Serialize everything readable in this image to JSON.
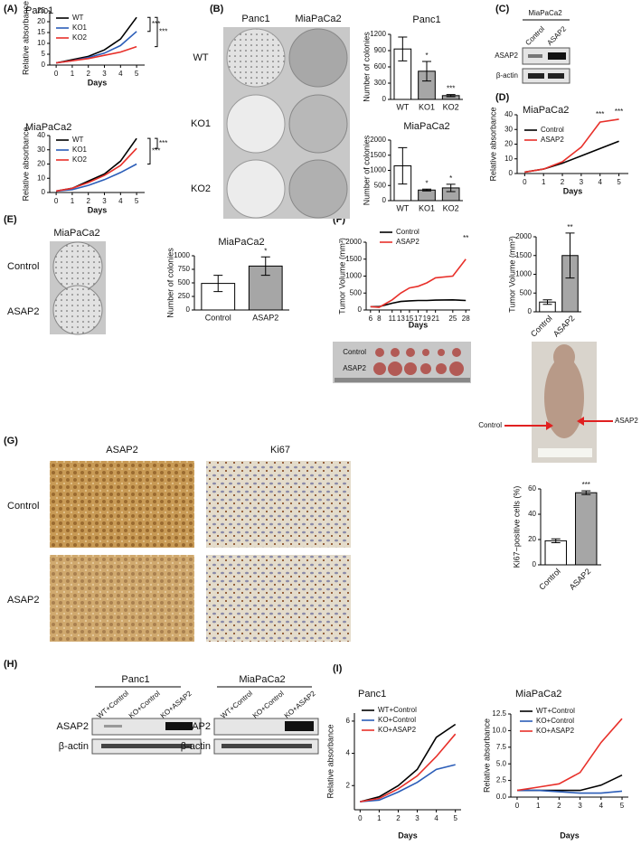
{
  "chart_data": [
    {
      "type": "line",
      "title": "Panc1",
      "xlabel": "Days",
      "ylabel": "Relative absorbance",
      "x": [
        0,
        1,
        2,
        3,
        4,
        5
      ],
      "xlim": [
        -0.4,
        5.5
      ],
      "xticks": [
        0,
        1,
        2,
        3,
        4,
        5
      ],
      "ylim": [
        0,
        25
      ],
      "yticks": [
        0,
        5,
        10,
        15,
        20,
        25
      ],
      "series": [
        {
          "name": "WT",
          "color": "#000000",
          "values": [
            1,
            2.5,
            4,
            7,
            12,
            22
          ]
        },
        {
          "name": "KO1",
          "color": "#2b5db8",
          "values": [
            1,
            2,
            3.5,
            5.5,
            9,
            15.5
          ]
        },
        {
          "name": "KO2",
          "color": "#e8302a",
          "values": [
            1,
            2,
            3,
            4.5,
            6,
            8.5
          ]
        }
      ],
      "annotations": [
        "***",
        "***"
      ]
    },
    {
      "type": "line",
      "title": "MiaPaCa2",
      "xlabel": "Days",
      "ylabel": "Relative absorbance",
      "x": [
        0,
        1,
        2,
        3,
        4,
        5
      ],
      "xlim": [
        -0.4,
        5.5
      ],
      "xticks": [
        0,
        1,
        2,
        3,
        4,
        5
      ],
      "ylim": [
        0,
        40
      ],
      "yticks": [
        0,
        10,
        20,
        30,
        40
      ],
      "series": [
        {
          "name": "WT",
          "color": "#000000",
          "values": [
            1,
            3,
            8,
            13,
            22,
            38
          ]
        },
        {
          "name": "KO1",
          "color": "#2b5db8",
          "values": [
            1,
            2,
            5,
            9,
            14,
            20
          ]
        },
        {
          "name": "KO2",
          "color": "#e8302a",
          "values": [
            1,
            3,
            7,
            12,
            19,
            31
          ]
        }
      ],
      "annotations": [
        "***",
        "***"
      ]
    },
    {
      "type": "bar",
      "title": "Panc1",
      "ylabel": "Number of colonies",
      "categories": [
        "WT",
        "KO1",
        "KO2"
      ],
      "values": [
        930,
        520,
        70
      ],
      "errors": [
        220,
        180,
        20
      ],
      "colors": [
        "#ffffff",
        "#a6a6a6",
        "#a6a6a6"
      ],
      "ylim": [
        0,
        1200
      ],
      "yticks": [
        0,
        300,
        600,
        900,
        1200
      ],
      "annotations": [
        "*",
        "***"
      ]
    },
    {
      "type": "bar",
      "title": "MiaPaCa2",
      "ylabel": "Number of colonies",
      "categories": [
        "WT",
        "KO1",
        "KO2"
      ],
      "values": [
        1150,
        350,
        420
      ],
      "errors": [
        600,
        30,
        120
      ],
      "colors": [
        "#ffffff",
        "#a6a6a6",
        "#a6a6a6"
      ],
      "ylim": [
        0,
        2000
      ],
      "yticks": [
        0,
        500,
        1000,
        1500,
        2000
      ],
      "annotations": [
        "*",
        "*"
      ]
    },
    {
      "type": "line",
      "title": "MiaPaCa2",
      "xlabel": "Days",
      "ylabel": "Relative absorbance",
      "x": [
        0,
        1,
        2,
        3,
        4,
        5
      ],
      "xlim": [
        -0.4,
        5.5
      ],
      "xticks": [
        0,
        1,
        2,
        3,
        4,
        5
      ],
      "ylim": [
        0,
        40
      ],
      "yticks": [
        0,
        10,
        20,
        30,
        40
      ],
      "series": [
        {
          "name": "Control",
          "color": "#000000",
          "values": [
            1,
            3,
            7,
            12,
            17,
            22
          ]
        },
        {
          "name": "ASAP2",
          "color": "#e8302a",
          "values": [
            1,
            3,
            8,
            18,
            35,
            37
          ]
        }
      ],
      "annotations": [
        "***",
        "***"
      ]
    },
    {
      "type": "bar",
      "title": "MiaPaCa2",
      "ylabel": "Number of colonies",
      "categories": [
        "Control",
        "ASAP2"
      ],
      "values": [
        490,
        810
      ],
      "errors": [
        150,
        170
      ],
      "colors": [
        "#ffffff",
        "#a6a6a6"
      ],
      "ylim": [
        0,
        1000
      ],
      "yticks": [
        0,
        250,
        500,
        750,
        1000
      ],
      "annotations": [
        "*"
      ]
    },
    {
      "type": "line",
      "xlabel": "Days",
      "ylabel": "Tumor Volume (mm³)",
      "x": [
        6,
        8,
        11,
        13,
        15,
        17,
        19,
        21,
        25,
        28
      ],
      "xlim": [
        5,
        29
      ],
      "xticks": [
        6,
        8,
        11,
        13,
        15,
        17,
        19,
        21,
        25,
        28
      ],
      "ylim": [
        0,
        2000
      ],
      "yticks": [
        0,
        500,
        1000,
        1500,
        2000
      ],
      "series": [
        {
          "name": "Control",
          "color": "#000000",
          "values": [
            100,
            100,
            200,
            250,
            270,
            280,
            280,
            290,
            300,
            280
          ]
        },
        {
          "name": "ASAP2",
          "color": "#e8302a",
          "values": [
            100,
            80,
            300,
            500,
            650,
            700,
            800,
            950,
            1000,
            1500
          ]
        }
      ],
      "annotations": [
        "**"
      ]
    },
    {
      "type": "bar",
      "ylabel": "Tumor Volume (mm³)",
      "categories": [
        "Control",
        "ASAP2"
      ],
      "values": [
        260,
        1500
      ],
      "errors": [
        60,
        600
      ],
      "colors": [
        "#ffffff",
        "#a6a6a6"
      ],
      "ylim": [
        0,
        2000
      ],
      "yticks": [
        0,
        500,
        1000,
        1500,
        2000
      ],
      "annotations": [
        "**"
      ]
    },
    {
      "type": "bar",
      "ylabel": "Ki67−positive cells (%)",
      "categories": [
        "Control",
        "ASAP2"
      ],
      "values": [
        19,
        57
      ],
      "errors": [
        1.5,
        1.5
      ],
      "colors": [
        "#ffffff",
        "#a6a6a6"
      ],
      "ylim": [
        0,
        60
      ],
      "yticks": [
        0,
        20,
        40,
        60
      ],
      "annotations": [
        "***"
      ]
    },
    {
      "type": "line",
      "title": "Panc1",
      "xlabel": "Days",
      "ylabel": "Relative absorbance",
      "x": [
        0,
        1,
        2,
        3,
        4,
        5
      ],
      "xlim": [
        -0.3,
        5.3
      ],
      "xticks": [
        0,
        1,
        2,
        3,
        4,
        5
      ],
      "ylim": [
        0.5,
        6.5
      ],
      "yticks": [
        2,
        4,
        6
      ],
      "series": [
        {
          "name": "WT+Control",
          "color": "#000000",
          "values": [
            1,
            1.3,
            2,
            3,
            5,
            5.8
          ]
        },
        {
          "name": "KO+Control",
          "color": "#2b5db8",
          "values": [
            1,
            1.1,
            1.6,
            2.2,
            3,
            3.3
          ]
        },
        {
          "name": "KO+ASAP2",
          "color": "#e8302a",
          "values": [
            1,
            1.2,
            1.8,
            2.6,
            3.8,
            5.2
          ]
        }
      ]
    },
    {
      "type": "line",
      "title": "MiaPaCa2",
      "xlabel": "Days",
      "ylabel": "Relative absorbance",
      "x": [
        0,
        1,
        2,
        3,
        4,
        5
      ],
      "xlim": [
        -0.3,
        5.3
      ],
      "xticks": [
        0,
        1,
        2,
        3,
        4,
        5
      ],
      "ylim": [
        0,
        12.5
      ],
      "yticks": [
        {
          "value": 0,
          "label": "0.0"
        },
        2.5,
        {
          "value": 5,
          "label": "5.0"
        },
        7.5,
        {
          "value": 10,
          "label": "10.0"
        },
        12.5
      ],
      "series": [
        {
          "name": "WT+Control",
          "color": "#000000",
          "values": [
            1,
            1,
            1,
            1,
            1.8,
            3.3
          ]
        },
        {
          "name": "KO+Control",
          "color": "#2b5db8",
          "values": [
            1,
            1,
            0.8,
            0.6,
            0.6,
            0.9
          ]
        },
        {
          "name": "KO+ASAP2",
          "color": "#e8302a",
          "values": [
            1,
            1.5,
            2,
            3.7,
            8.2,
            11.8
          ]
        }
      ]
    }
  ],
  "figure": {
    "panel_labels": [
      "(A)",
      "(B)",
      "(C)",
      "(D)",
      "(E)",
      "(F)",
      "(G)",
      "(H)",
      "(I)"
    ],
    "B": {
      "columns": [
        "Panc1",
        "MiaPaCa2"
      ],
      "rows": [
        "WT",
        "KO1",
        "KO2"
      ]
    },
    "C": {
      "cell_line": "MiaPaCa2",
      "lanes": [
        "Control",
        "ASAP2"
      ],
      "proteins": [
        "ASAP2",
        "β-actin"
      ]
    },
    "E": {
      "cell_line": "MiaPaCa2",
      "rows": [
        "Control",
        "ASAP2"
      ]
    },
    "F": {
      "tumor_rows": [
        "Control",
        "ASAP2"
      ],
      "mouse_labels": [
        "Control",
        "ASAP2"
      ]
    },
    "G": {
      "columns": [
        "ASAP2",
        "Ki67"
      ],
      "rows": [
        "Control",
        "ASAP2"
      ]
    },
    "H": {
      "blots": [
        {
          "cell_line": "Panc1",
          "lanes": [
            "WT+Control",
            "KO+Control",
            "KO+ASAP2"
          ],
          "proteins": [
            "ASAP2",
            "β-actin"
          ]
        },
        {
          "cell_line": "MiaPaCa2",
          "lanes": [
            "WT+Control",
            "KO+Control",
            "KO+ASAP2"
          ],
          "proteins": [
            "ASAP2",
            "β-actin"
          ]
        }
      ]
    }
  }
}
